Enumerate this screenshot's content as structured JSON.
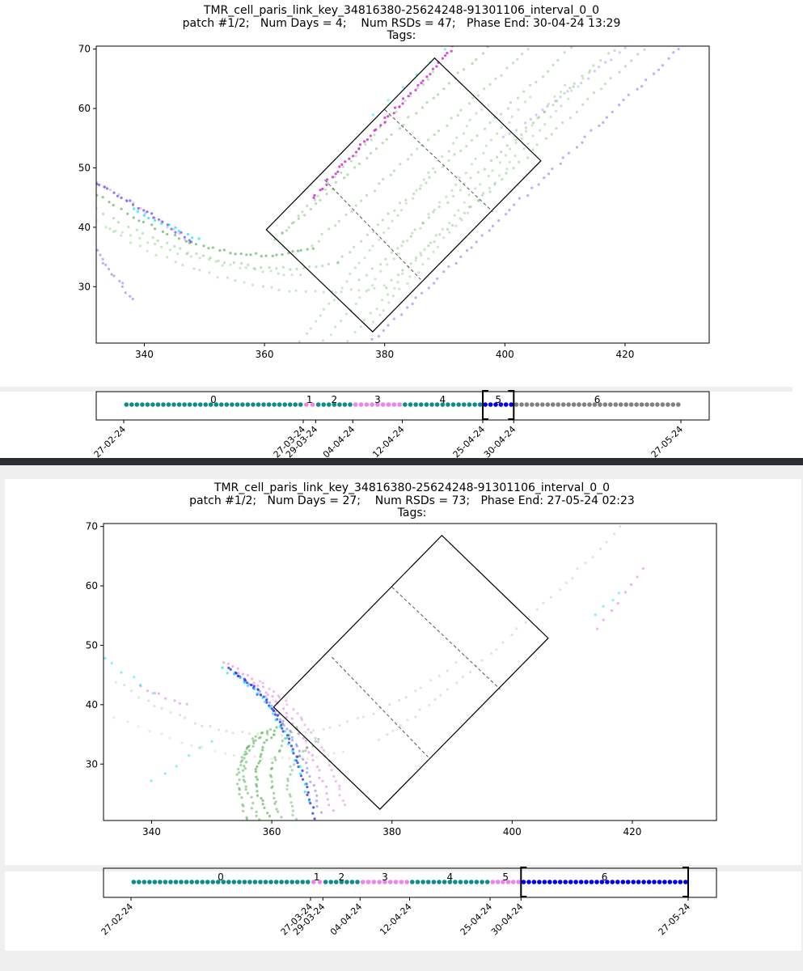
{
  "chart_data": [
    {
      "type": "scatter",
      "title_lines": [
        "TMR_cell_paris_link_key_34816380-25624248-91301106_interval_0_0",
        "patch #1/2;   Num Days = 4;    Num RSDs = 47;   Phase End: 30-04-24 13:29",
        "Tags:"
      ],
      "xlim": [
        332,
        434
      ],
      "ylim": [
        20.5,
        70.5
      ],
      "xticks": [
        340,
        360,
        380,
        400,
        420
      ],
      "yticks": [
        30,
        40,
        50,
        60,
        70
      ],
      "box_corners": [
        [
          360.3,
          39.6
        ],
        [
          388.3,
          68.5
        ],
        [
          406,
          51.2
        ],
        [
          378,
          22.4
        ]
      ],
      "box_dividers": [
        [
          [
            370,
            48
          ],
          [
            386,
            31.2
          ]
        ],
        [
          [
            380,
            59.8
          ],
          [
            398,
            42.6
          ]
        ]
      ],
      "series": [
        {
          "color": "#2ca02c",
          "curves": [
            {
              "kind": "quad",
              "points": [
                [
                  332,
                  45.5
                ],
                [
                  352,
                  32
                ],
                [
                  368,
                  36.5
                ]
              ],
              "n": 40,
              "alpha": 0.55
            },
            {
              "kind": "quad",
              "points": [
                [
                  332,
                  43
                ],
                [
                  354,
                  30
                ],
                [
                  372,
                  34
                ]
              ],
              "n": 34,
              "alpha": 0.3
            },
            {
              "kind": "quad",
              "points": [
                [
                  332,
                  41
                ],
                [
                  356,
                  26
                ],
                [
                  380,
                  30
                ]
              ],
              "n": 34,
              "alpha": 0.25
            },
            {
              "kind": "quad",
              "points": [
                [
                  334,
                  40
                ],
                [
                  350,
                  33
                ],
                [
                  366,
                  32
                ]
              ],
              "n": 26,
              "alpha": 0.25
            },
            {
              "kind": "line",
              "points": [
                [
                  362,
                  38
                ],
                [
                  398,
                  71
                ]
              ],
              "n": 40,
              "alpha": 0.35
            },
            {
              "kind": "line",
              "points": [
                [
                  368,
                  37
                ],
                [
                  404,
                  70
                ]
              ],
              "n": 40,
              "alpha": 0.3
            },
            {
              "kind": "line",
              "points": [
                [
                  372,
                  34
                ],
                [
                  412,
                  71
                ]
              ],
              "n": 42,
              "alpha": 0.3
            },
            {
              "kind": "line",
              "points": [
                [
                  376,
                  31
                ],
                [
                  418,
                  70
                ]
              ],
              "n": 42,
              "alpha": 0.3
            },
            {
              "kind": "line",
              "points": [
                [
                  380,
                  30
                ],
                [
                  424,
                  71
                ]
              ],
              "n": 44,
              "alpha": 0.3
            },
            {
              "kind": "line",
              "points": [
                [
                  366,
                  21
                ],
                [
                  396,
                  60
                ]
              ],
              "n": 40,
              "alpha": 0.25
            },
            {
              "kind": "line",
              "points": [
                [
                  370,
                  21
                ],
                [
                  404,
                  62
                ]
              ],
              "n": 40,
              "alpha": 0.25
            },
            {
              "kind": "line",
              "points": [
                [
                  374,
                  21
                ],
                [
                  410,
                  64
                ]
              ],
              "n": 40,
              "alpha": 0.25
            },
            {
              "kind": "line",
              "points": [
                [
                  378,
                  24
                ],
                [
                  414,
                  66
                ]
              ],
              "n": 40,
              "alpha": 0.25
            },
            {
              "kind": "line",
              "points": [
                [
                  363,
                  39
                ],
                [
                  388,
                  66
                ]
              ],
              "n": 30,
              "alpha": 0.3
            }
          ]
        },
        {
          "color": "#0000ff",
          "curves": [
            {
              "kind": "line",
              "points": [
                [
                  378,
                  21
                ],
                [
                  430,
                  71
                ]
              ],
              "n": 58,
              "alpha": 0.3
            },
            {
              "kind": "quad",
              "points": [
                [
                  332,
                  47.5
                ],
                [
                  340,
                  43
                ],
                [
                  348,
                  37.5
                ]
              ],
              "n": 24,
              "alpha": 0.5
            },
            {
              "kind": "line",
              "points": [
                [
                  332,
                  36
                ],
                [
                  338,
                  28
                ]
              ],
              "n": 14,
              "alpha": 0.3
            },
            {
              "kind": "line",
              "points": [
                [
                  400,
                  55
                ],
                [
                  420,
                  70
                ]
              ],
              "n": 20,
              "alpha": 0.2
            }
          ]
        },
        {
          "color": "#cc00cc",
          "curves": [
            {
              "kind": "line",
              "points": [
                [
                  368,
                  45
                ],
                [
                  392,
                  71
                ]
              ],
              "n": 48,
              "alpha": 0.7
            },
            {
              "kind": "quad",
              "points": [
                [
                  332,
                  47.5
                ],
                [
                  340,
                  43
                ],
                [
                  347,
                  38
                ]
              ],
              "n": 14,
              "alpha": 0.25
            }
          ]
        },
        {
          "color": "#00e5ff",
          "curves": [
            {
              "kind": "line",
              "points": [
                [
                  338,
                  43
                ],
                [
                  349,
                  38
                ]
              ],
              "n": 12,
              "alpha": 0.7
            },
            {
              "kind": "line",
              "points": [
                [
                  378,
                  59
                ],
                [
                  390,
                  70
                ]
              ],
              "n": 6,
              "alpha": 0.5
            }
          ]
        }
      ]
    },
    {
      "type": "timeline",
      "dates": [
        "27-02-24",
        "27-03-24",
        "29-03-24",
        "04-04-24",
        "12-04-24",
        "25-04-24",
        "30-04-24",
        "27-05-24"
      ],
      "date_day_index": [
        0,
        29,
        31,
        37,
        45,
        58,
        63,
        90
      ],
      "segments": [
        {
          "label": "0",
          "start": 0,
          "end": 29,
          "color": "#0d8c8c"
        },
        {
          "label": "1",
          "start": 29,
          "end": 31,
          "color": "#ee82ee"
        },
        {
          "label": "2",
          "start": 31,
          "end": 37,
          "color": "#0d8c8c"
        },
        {
          "label": "3",
          "start": 37,
          "end": 45,
          "color": "#ee82ee"
        },
        {
          "label": "4",
          "start": 45,
          "end": 58,
          "color": "#0d8c8c"
        },
        {
          "label": "5",
          "start": 58,
          "end": 63,
          "color": "#0000ee"
        },
        {
          "label": "6",
          "start": 63,
          "end": 90,
          "color": "#808080"
        }
      ],
      "bracket": [
        58,
        63
      ]
    },
    {
      "type": "scatter",
      "title_lines": [
        "TMR_cell_paris_link_key_34816380-25624248-91301106_interval_0_0",
        "patch #1/2;   Num Days = 27;    Num RSDs = 73;   Phase End: 27-05-24 02:23",
        "Tags:"
      ],
      "xlim": [
        332,
        434
      ],
      "ylim": [
        20.5,
        70.5
      ],
      "xticks": [
        340,
        360,
        380,
        400,
        420
      ],
      "yticks": [
        30,
        40,
        50,
        60,
        70
      ],
      "box_corners": [
        [
          360.3,
          39.6
        ],
        [
          388.3,
          68.5
        ],
        [
          406,
          51.2
        ],
        [
          378,
          22.4
        ]
      ],
      "box_dividers": [
        [
          [
            370,
            48
          ],
          [
            386,
            31.2
          ]
        ],
        [
          [
            380,
            59.8
          ],
          [
            398,
            42.6
          ]
        ]
      ],
      "series": [
        {
          "color": "#2ca02c",
          "curves": [
            {
              "kind": "quad",
              "points": [
                [
                  360,
                  20.5
                ],
                [
                  354,
                  30
                ],
                [
                  362,
                  37
                ]
              ],
              "n": 30,
              "alpha": 0.55
            },
            {
              "kind": "quad",
              "points": [
                [
                  358,
                  20.5
                ],
                [
                  352,
                  32
                ],
                [
                  360,
                  36
                ]
              ],
              "n": 30,
              "alpha": 0.45
            },
            {
              "kind": "quad",
              "points": [
                [
                  356,
                  20.5
                ],
                [
                  352,
                  30
                ],
                [
                  358,
                  35
                ]
              ],
              "n": 26,
              "alpha": 0.45
            },
            {
              "kind": "quad",
              "points": [
                [
                  362,
                  20.5
                ],
                [
                  357,
                  29
                ],
                [
                  364,
                  36
                ]
              ],
              "n": 26,
              "alpha": 0.45
            },
            {
              "kind": "quad",
              "points": [
                [
                  364,
                  20.5
                ],
                [
                  360,
                  30
                ],
                [
                  368,
                  34
                ]
              ],
              "n": 24,
              "alpha": 0.4
            },
            {
              "kind": "quad",
              "points": [
                [
                  334,
                  44
                ],
                [
                  362,
                  24
                ],
                [
                  392,
                  48
                ]
              ],
              "n": 44,
              "alpha": 0.2
            },
            {
              "kind": "quad",
              "points": [
                [
                  378,
                  34
                ],
                [
                  398,
                  48
                ],
                [
                  418,
                  70
                ]
              ],
              "n": 36,
              "alpha": 0.2
            },
            {
              "kind": "quad",
              "points": [
                [
                  334,
                  38
                ],
                [
                  356,
                  28
                ],
                [
                  372,
                  32
                ]
              ],
              "n": 24,
              "alpha": 0.15
            }
          ]
        },
        {
          "color": "#0000ff",
          "curves": [
            {
              "kind": "quad",
              "points": [
                [
                  353,
                  46
                ],
                [
                  363,
                  40
                ],
                [
                  367,
                  21
                ]
              ],
              "n": 50,
              "alpha": 0.65
            },
            {
              "kind": "quad",
              "points": [
                [
                  354,
                  45
                ],
                [
                  364,
                  39
                ],
                [
                  368,
                  22
                ]
              ],
              "n": 40,
              "alpha": 0.3
            }
          ]
        },
        {
          "color": "#cc00cc",
          "curves": [
            {
              "kind": "quad",
              "points": [
                [
                  352,
                  47
                ],
                [
                  365,
                  41
                ],
                [
                  370,
                  22
                ]
              ],
              "n": 38,
              "alpha": 0.3
            },
            {
              "kind": "quad",
              "points": [
                [
                  358,
                  44
                ],
                [
                  369,
                  36
                ],
                [
                  372,
                  23
                ]
              ],
              "n": 30,
              "alpha": 0.25
            },
            {
              "kind": "line",
              "points": [
                [
                  338,
                  43
                ],
                [
                  346,
                  40
                ]
              ],
              "n": 8,
              "alpha": 0.3
            },
            {
              "kind": "line",
              "points": [
                [
                  414,
                  53
                ],
                [
                  422,
                  63
                ]
              ],
              "n": 8,
              "alpha": 0.3
            }
          ]
        },
        {
          "color": "#00e5ff",
          "curves": [
            {
              "kind": "quad",
              "points": [
                [
                  352,
                  46
                ],
                [
                  362,
                  41
                ],
                [
                  366,
                  24
                ]
              ],
              "n": 24,
              "alpha": 0.7
            },
            {
              "kind": "line",
              "points": [
                [
                  332,
                  48
                ],
                [
                  340,
                  42
                ]
              ],
              "n": 6,
              "alpha": 0.5
            },
            {
              "kind": "line",
              "points": [
                [
                  414,
                  55
                ],
                [
                  418,
                  59
                ]
              ],
              "n": 4,
              "alpha": 0.5
            },
            {
              "kind": "line",
              "points": [
                [
                  340,
                  27
                ],
                [
                  350,
                  34
                ]
              ],
              "n": 6,
              "alpha": 0.5
            }
          ]
        }
      ]
    },
    {
      "type": "timeline",
      "dates": [
        "27-02-24",
        "27-03-24",
        "29-03-24",
        "04-04-24",
        "12-04-24",
        "25-04-24",
        "30-04-24",
        "27-05-24"
      ],
      "date_day_index": [
        0,
        29,
        31,
        37,
        45,
        58,
        63,
        90
      ],
      "segments": [
        {
          "label": "0",
          "start": 0,
          "end": 29,
          "color": "#0d8c8c"
        },
        {
          "label": "1",
          "start": 29,
          "end": 31,
          "color": "#ee82ee"
        },
        {
          "label": "2",
          "start": 31,
          "end": 37,
          "color": "#0d8c8c"
        },
        {
          "label": "3",
          "start": 37,
          "end": 45,
          "color": "#ee82ee"
        },
        {
          "label": "4",
          "start": 45,
          "end": 58,
          "color": "#0d8c8c"
        },
        {
          "label": "5",
          "start": 58,
          "end": 63,
          "color": "#ee82ee"
        },
        {
          "label": "6",
          "start": 63,
          "end": 90,
          "color": "#0000ee"
        }
      ],
      "bracket": [
        63,
        90
      ]
    }
  ]
}
